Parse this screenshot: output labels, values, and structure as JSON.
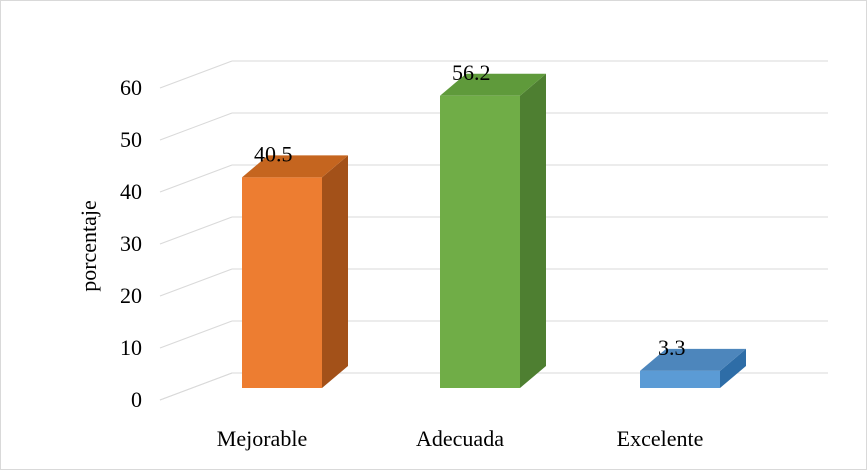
{
  "chart_data": {
    "type": "bar",
    "title": "",
    "xlabel": "",
    "ylabel": "porcentaje",
    "categories": [
      "Mejorable",
      "Adecuada",
      "Excelente"
    ],
    "values": [
      40.5,
      56.2,
      3.3
    ],
    "data_labels": [
      "40.5",
      "56.2",
      "3.3"
    ],
    "ylim": [
      0,
      60
    ],
    "yticks": [
      0,
      10,
      20,
      30,
      40,
      50,
      60
    ],
    "ytick_labels": [
      "0",
      "10",
      "20",
      "30",
      "40",
      "50",
      "60"
    ],
    "grid": true,
    "style": "3d-column",
    "colors": {
      "Mejorable": {
        "front": "#ED7D31",
        "side": "#A35119",
        "top": "#C5651F"
      },
      "Adecuada": {
        "front": "#70AD47",
        "side": "#4E7F31",
        "top": "#5F9A3B"
      },
      "Excelente": {
        "front": "#5B9BD5",
        "side": "#2E6DA7",
        "top": "#4D86BC"
      }
    }
  }
}
